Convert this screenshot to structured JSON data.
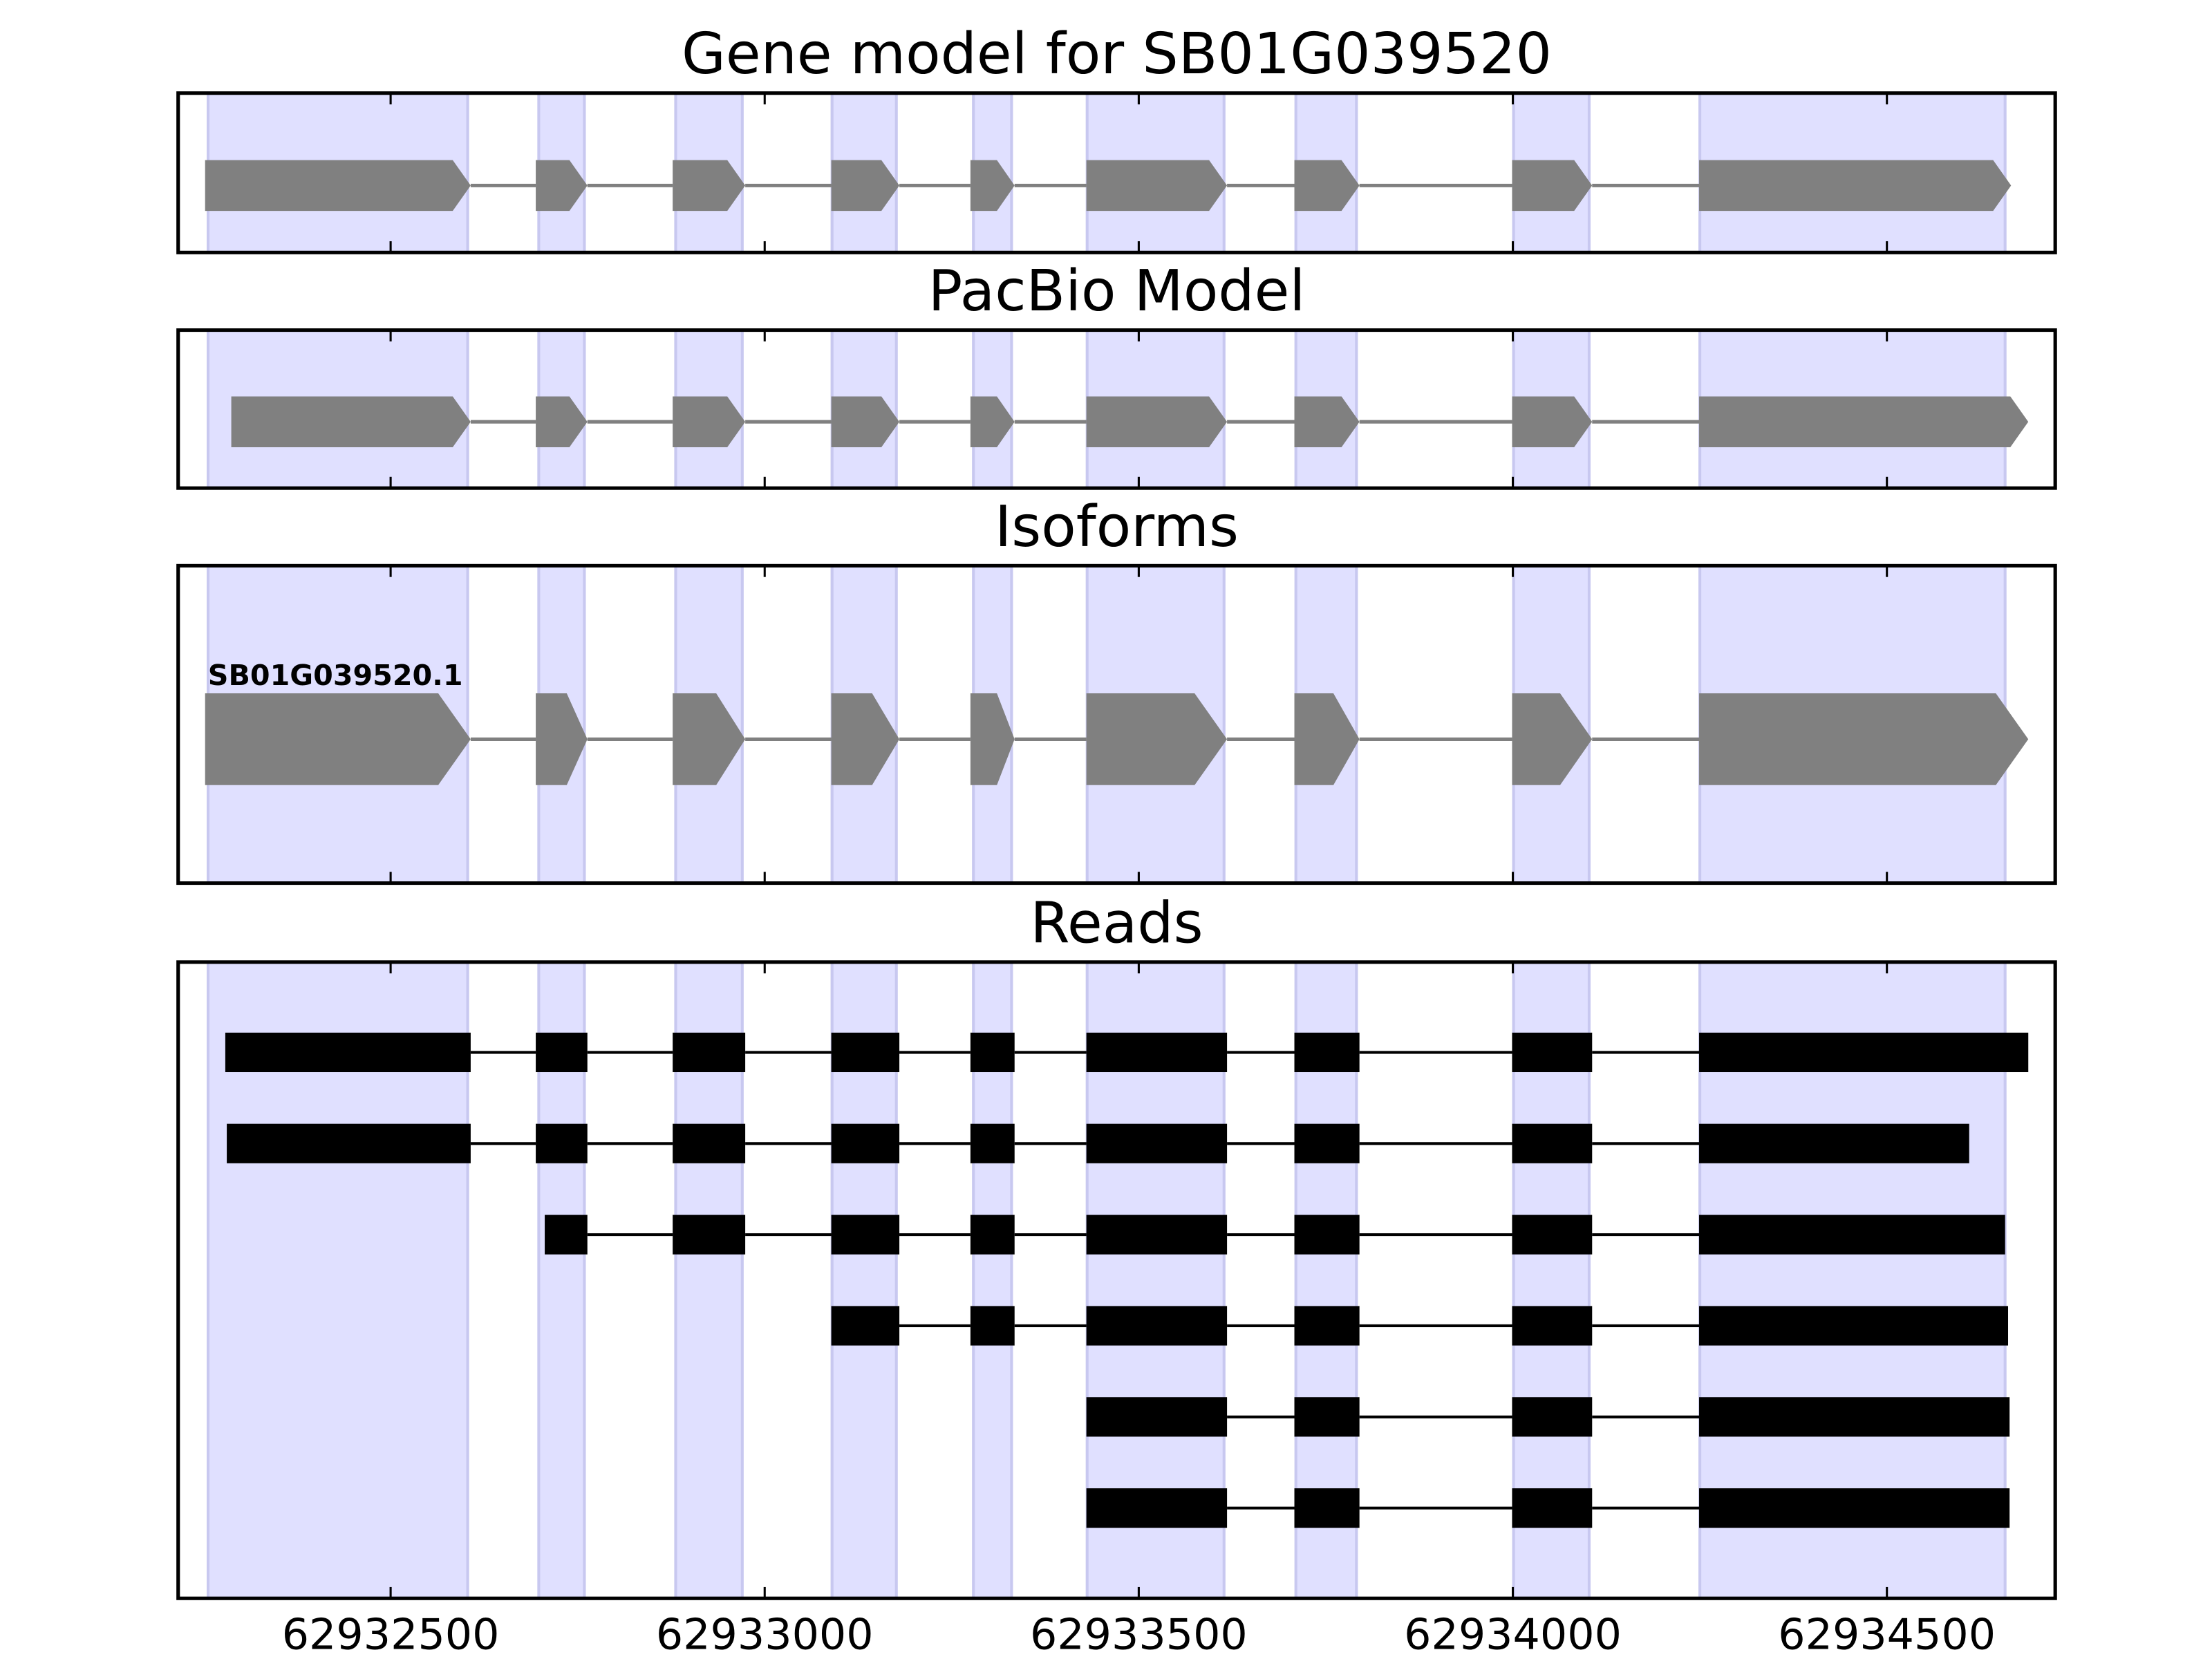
{
  "chart_data": [
    {
      "type": "gene_track",
      "style": "arrow",
      "title": "Gene model for SB01G039520",
      "color": "#808080",
      "highlight_color": "#e0e0ff",
      "xlim": [
        62932216,
        62934725
      ],
      "xticks": [
        62932500,
        62933000,
        62933500,
        62934000,
        62934500
      ],
      "highlight": [
        [
          62932256,
          62932603
        ],
        [
          62932698,
          62932759
        ],
        [
          62932881,
          62932970
        ],
        [
          62933090,
          62933176
        ],
        [
          62933279,
          62933330
        ],
        [
          62933431,
          62933614
        ],
        [
          62933710,
          62933791
        ],
        [
          62934001,
          62934102
        ],
        [
          62934250,
          62934658
        ]
      ],
      "tracks": [
        {
          "exons": [
            [
              62932252,
              62932607
            ],
            [
              62932694,
              62932763
            ],
            [
              62932877,
              62932974
            ],
            [
              62933089,
              62933180
            ],
            [
              62933275,
              62933334
            ],
            [
              62933430,
              62933618
            ],
            [
              62933708,
              62933795
            ],
            [
              62933999,
              62934106
            ],
            [
              62934249,
              62934666
            ]
          ]
        }
      ]
    },
    {
      "type": "gene_track",
      "style": "arrow",
      "title": "PacBio Model",
      "color": "#808080",
      "highlight_color": "#e0e0ff",
      "xlim": [
        62932216,
        62934725
      ],
      "xticks": [
        62932500,
        62933000,
        62933500,
        62934000,
        62934500
      ],
      "highlight": [
        [
          62932256,
          62932603
        ],
        [
          62932698,
          62932759
        ],
        [
          62932881,
          62932970
        ],
        [
          62933090,
          62933176
        ],
        [
          62933279,
          62933330
        ],
        [
          62933431,
          62933614
        ],
        [
          62933710,
          62933791
        ],
        [
          62934001,
          62934102
        ],
        [
          62934250,
          62934658
        ]
      ],
      "tracks": [
        {
          "exons": [
            [
              62932287,
              62932607
            ],
            [
              62932694,
              62932763
            ],
            [
              62932877,
              62932974
            ],
            [
              62933089,
              62933180
            ],
            [
              62933275,
              62933334
            ],
            [
              62933430,
              62933618
            ],
            [
              62933708,
              62933795
            ],
            [
              62933999,
              62934106
            ],
            [
              62934249,
              62934689
            ]
          ]
        }
      ]
    },
    {
      "type": "gene_track",
      "style": "arrow",
      "title": "Isoforms",
      "color": "#808080",
      "highlight_color": "#e0e0ff",
      "xlim": [
        62932216,
        62934725
      ],
      "xticks": [
        62932500,
        62933000,
        62933500,
        62934000,
        62934500
      ],
      "highlight": [
        [
          62932256,
          62932603
        ],
        [
          62932698,
          62932759
        ],
        [
          62932881,
          62932970
        ],
        [
          62933090,
          62933176
        ],
        [
          62933279,
          62933330
        ],
        [
          62933431,
          62933614
        ],
        [
          62933710,
          62933791
        ],
        [
          62934001,
          62934102
        ],
        [
          62934250,
          62934658
        ]
      ],
      "tracks": [
        {
          "name": "SB01G039520.1",
          "exons": [
            [
              62932252,
              62932607
            ],
            [
              62932694,
              62932763
            ],
            [
              62932877,
              62932974
            ],
            [
              62933089,
              62933180
            ],
            [
              62933275,
              62933334
            ],
            [
              62933430,
              62933618
            ],
            [
              62933708,
              62933795
            ],
            [
              62933999,
              62934106
            ],
            [
              62934249,
              62934689
            ]
          ]
        }
      ]
    },
    {
      "type": "gene_track",
      "style": "block",
      "title": "Reads",
      "color": "#000000",
      "highlight_color": "#e0e0ff",
      "xlim": [
        62932216,
        62934725
      ],
      "xticks": [
        62932500,
        62933000,
        62933500,
        62934000,
        62934500
      ],
      "highlight": [
        [
          62932256,
          62932603
        ],
        [
          62932698,
          62932759
        ],
        [
          62932881,
          62932970
        ],
        [
          62933090,
          62933176
        ],
        [
          62933279,
          62933330
        ],
        [
          62933431,
          62933614
        ],
        [
          62933710,
          62933791
        ],
        [
          62934001,
          62934102
        ],
        [
          62934250,
          62934658
        ]
      ],
      "tracks": [
        {
          "exons": [
            [
              62932279,
              62932607
            ],
            [
              62932694,
              62932763
            ],
            [
              62932877,
              62932974
            ],
            [
              62933089,
              62933180
            ],
            [
              62933275,
              62933334
            ],
            [
              62933430,
              62933618
            ],
            [
              62933708,
              62933795
            ],
            [
              62933999,
              62934106
            ],
            [
              62934249,
              62934689
            ]
          ]
        },
        {
          "exons": [
            [
              62932281,
              62932607
            ],
            [
              62932694,
              62932763
            ],
            [
              62932877,
              62932974
            ],
            [
              62933089,
              62933180
            ],
            [
              62933275,
              62933334
            ],
            [
              62933430,
              62933618
            ],
            [
              62933708,
              62933795
            ],
            [
              62933999,
              62934106
            ],
            [
              62934249,
              62934610
            ]
          ]
        },
        {
          "exons": [
            [
              62932706,
              62932763
            ],
            [
              62932877,
              62932974
            ],
            [
              62933089,
              62933180
            ],
            [
              62933275,
              62933334
            ],
            [
              62933430,
              62933618
            ],
            [
              62933708,
              62933795
            ],
            [
              62933999,
              62934106
            ],
            [
              62934249,
              62934658
            ]
          ]
        },
        {
          "exons": [
            [
              62933089,
              62933180
            ],
            [
              62933275,
              62933334
            ],
            [
              62933430,
              62933618
            ],
            [
              62933708,
              62933795
            ],
            [
              62933999,
              62934106
            ],
            [
              62934249,
              62934662
            ]
          ]
        },
        {
          "exons": [
            [
              62933430,
              62933618
            ],
            [
              62933708,
              62933795
            ],
            [
              62933999,
              62934106
            ],
            [
              62934249,
              62934664
            ]
          ]
        },
        {
          "exons": [
            [
              62933430,
              62933618
            ],
            [
              62933708,
              62933795
            ],
            [
              62933999,
              62934106
            ],
            [
              62934249,
              62934664
            ]
          ]
        }
      ]
    }
  ]
}
